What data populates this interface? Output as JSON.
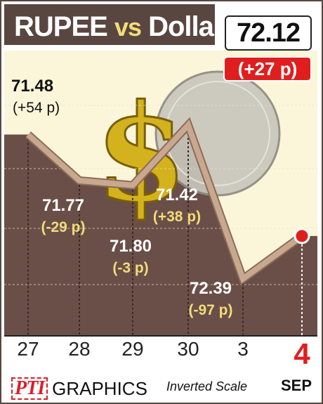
{
  "header": {
    "title_main": "RUPEE",
    "title_vs": "vs",
    "title_end": "Dollar",
    "latest_value": "72.12",
    "latest_change": "(+27 p)"
  },
  "footer": {
    "logo": "PTI",
    "graphics_label": "GRAPHICS",
    "scale_note": "Inverted Scale",
    "month": "SEP"
  },
  "colors": {
    "frame": "#5a4641",
    "area_fill": "#6a4f48",
    "upper_fill": "#fbf6d9",
    "line": "#c8a98f",
    "label_gold": "#f2dc7a",
    "highlight": "#e01e1e"
  },
  "chart_data": {
    "type": "line",
    "title": "RUPEE vs Dollar",
    "inverted_y": true,
    "ylim": [
      70.95,
      72.75
    ],
    "categories": [
      "27",
      "28",
      "29",
      "30",
      "3",
      "4"
    ],
    "x_month": "SEP",
    "values": [
      71.48,
      71.77,
      71.8,
      71.42,
      72.39,
      72.12
    ],
    "data_labels": [
      "71.48",
      "71.77",
      "71.80",
      "71.42",
      "72.39",
      "72.12"
    ],
    "change_labels": [
      "(+54 p)",
      "(-29 p)",
      "(-3 p)",
      "(+38 p)",
      "(-97 p)",
      "(+27 p)"
    ],
    "highlight_index": 5,
    "grid": true
  }
}
